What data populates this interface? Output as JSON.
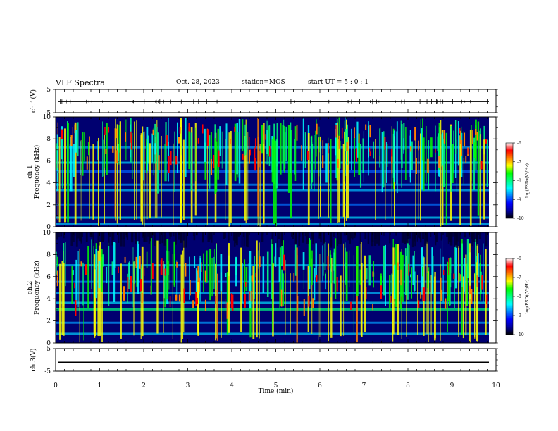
{
  "header": {
    "title": "VLF Spectra",
    "date": "Oct. 28, 2023",
    "station": "station=MOS",
    "start": "start  UT  =   5 : 0  : 1"
  },
  "chart_data": [
    {
      "type": "line",
      "name": "ch1-waveform",
      "ylabel": "ch.1(V)",
      "ylim": [
        -5,
        5
      ],
      "yticks": [
        "5",
        "-5"
      ],
      "xlim": [
        0,
        10
      ],
      "baseline_v": -0.2,
      "spikes": true
    },
    {
      "type": "heatmap",
      "name": "ch1-spectrogram",
      "ylabel": "ch.1\nFrequency (kHz)",
      "ylabel_lines": [
        "ch.1",
        "Frequency (kHz)"
      ],
      "ylim": [
        0,
        10
      ],
      "yticks": [
        "0",
        "2",
        "4",
        "6",
        "8",
        "10"
      ],
      "xlim": [
        0,
        10
      ],
      "data_end_min": 9.84,
      "colorbar": {
        "label": "log(PSD)(V²/Hz)",
        "range": [
          -10,
          -6
        ],
        "ticks": [
          "-6",
          "-7",
          "-8",
          "-9",
          "-10"
        ]
      }
    },
    {
      "type": "heatmap",
      "name": "ch2-spectrogram",
      "ylabel_lines": [
        "ch.2",
        "Frequency (kHz)"
      ],
      "ylim": [
        0,
        10
      ],
      "yticks": [
        "0",
        "2",
        "4",
        "6",
        "8",
        "10"
      ],
      "xlim": [
        0,
        10
      ],
      "data_end_min": 9.84,
      "colorbar": {
        "label": "log(PSD)(V²/Hz)",
        "range": [
          -10,
          -6
        ],
        "ticks": [
          "-6",
          "-7",
          "-8",
          "-9",
          "-10"
        ]
      }
    },
    {
      "type": "line",
      "name": "ch3-waveform",
      "ylabel": "ch.3(V)",
      "ylim": [
        -5,
        5
      ],
      "yticks": [
        "5",
        "-5"
      ],
      "xlim": [
        0,
        10
      ],
      "baseline_v": -1.0,
      "spikes": false
    }
  ],
  "x_axis": {
    "label": "Time  (min)",
    "ticks": [
      "0",
      "1",
      "2",
      "3",
      "4",
      "5",
      "6",
      "7",
      "8",
      "9",
      "10"
    ]
  },
  "colors": {
    "colormap": [
      "#000000",
      "#0000a0",
      "#0000ff",
      "#0080ff",
      "#00ffff",
      "#00ff80",
      "#00ff00",
      "#ffff00",
      "#ff8000",
      "#ff0000",
      "#ffffff"
    ]
  }
}
